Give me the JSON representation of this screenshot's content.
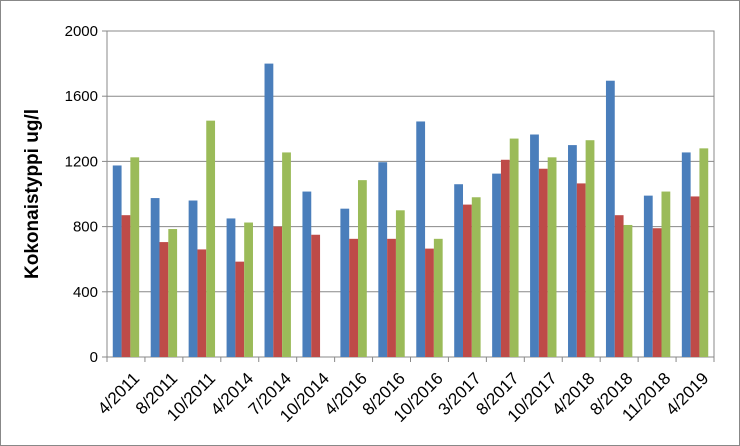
{
  "chart_data": {
    "type": "bar",
    "title": "",
    "xlabel": "",
    "ylabel": "Kokonaistyppi  ug/l",
    "ylim": [
      0,
      2000
    ],
    "yticks": [
      0,
      400,
      800,
      1200,
      1600,
      2000
    ],
    "grid": true,
    "legend": "none",
    "categories": [
      "4/2011",
      "8/2011",
      "10/2011",
      "4/2014",
      "7/2014",
      "10/2014",
      "4/2016",
      "8/2016",
      "10/2016",
      "3/2017",
      "8/2017",
      "10/2017",
      "4/2018",
      "8/2018",
      "11/2018",
      "4/2019"
    ],
    "series": [
      {
        "color": "#4a7ebb",
        "values": [
          1175,
          975,
          960,
          850,
          1800,
          1015,
          910,
          1195,
          1445,
          1060,
          1125,
          1365,
          1300,
          1695,
          990,
          1255
        ]
      },
      {
        "color": "#be4b48",
        "values": [
          870,
          705,
          660,
          585,
          800,
          750,
          725,
          725,
          665,
          935,
          1210,
          1155,
          1065,
          870,
          790,
          985
        ]
      },
      {
        "color": "#9bbb59",
        "values": [
          1225,
          785,
          1450,
          825,
          1255,
          null,
          1085,
          900,
          725,
          980,
          1340,
          1225,
          1330,
          810,
          1015,
          1280
        ]
      }
    ]
  }
}
